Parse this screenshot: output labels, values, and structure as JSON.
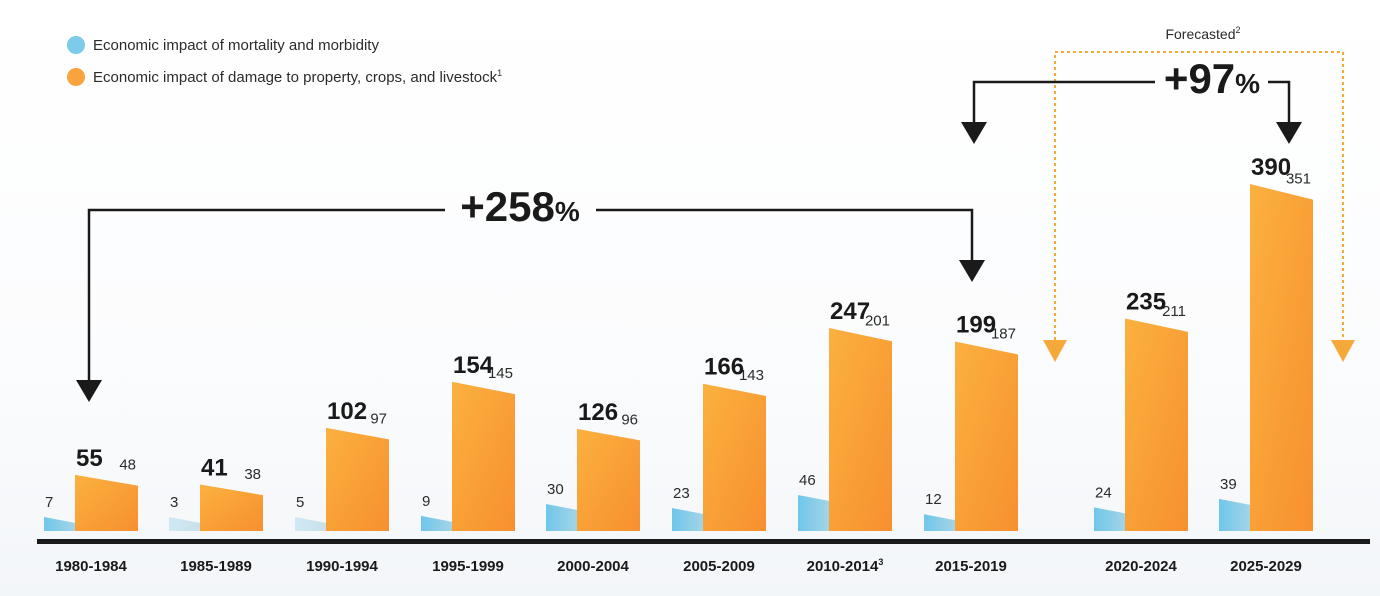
{
  "legend": {
    "mortality_label": "Economic impact of mortality and morbidity",
    "damage_label": "Economic impact of damage to property, crops, and livestock",
    "damage_footnote": "1"
  },
  "colors": {
    "mortality": "#7ccbe9",
    "damage": "#f8a43c",
    "arrow": "#1a1a1a",
    "forecast": "#f4a93a"
  },
  "forecast": {
    "label": "Forecasted",
    "footnote": "2"
  },
  "annotations": {
    "growth_hist": "+258",
    "growth_hist_sign": "%",
    "growth_forecast": "+97",
    "growth_forecast_sign": "%"
  },
  "chart_data": {
    "type": "bar",
    "categories": [
      "1980-1984",
      "1985-1989",
      "1990-1994",
      "1995-1999",
      "2000-2004",
      "2005-2009",
      "2010-2014",
      "2015-2019",
      "2020-2024",
      "2025-2029"
    ],
    "category_footnotes": [
      "",
      "",
      "",
      "",
      "",
      "",
      "3",
      "",
      "",
      ""
    ],
    "totals": [
      55,
      41,
      102,
      154,
      126,
      166,
      247,
      199,
      235,
      390
    ],
    "series": [
      {
        "name": "Economic impact of mortality and morbidity",
        "values": [
          7,
          3,
          5,
          9,
          30,
          23,
          46,
          12,
          24,
          39
        ]
      },
      {
        "name": "Economic impact of damage to property, crops, and livestock",
        "values": [
          48,
          38,
          97,
          145,
          96,
          143,
          201,
          187,
          211,
          351
        ]
      }
    ],
    "forecasted_categories": [
      "2020-2024",
      "2025-2029"
    ],
    "ylim": [
      0,
      400
    ]
  }
}
